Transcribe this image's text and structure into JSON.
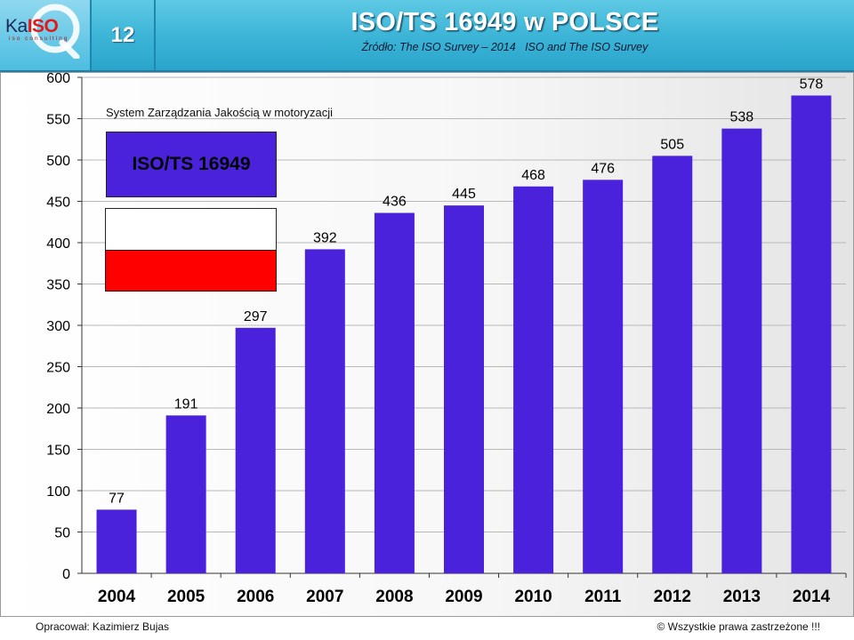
{
  "header": {
    "logo_text_main": "Ka",
    "logo_text_iso": "ISO",
    "logo_sub": "iso consulting",
    "slide_number": "12",
    "title": "ISO/TS 16949 w POLSCE",
    "subtitle": "Źródło: The ISO Survey – 2014   ISO and The ISO Survey"
  },
  "legend": {
    "system_label": "System Zarządzania Jakością w motoryzacji",
    "box_label": "ISO/TS 16949"
  },
  "footer": {
    "author": "Opracował: Kazimierz Bujas",
    "rights": "© Wszystkie prawa zastrzeżone !!!"
  },
  "colors": {
    "bar": "#4a22dc",
    "header": "#3ab3d6",
    "flag_white": "#ffffff",
    "flag_red": "#ff0000"
  },
  "chart_data": {
    "type": "bar",
    "categories": [
      "2004",
      "2005",
      "2006",
      "2007",
      "2008",
      "2009",
      "2010",
      "2011",
      "2012",
      "2013",
      "2014"
    ],
    "values": [
      77,
      191,
      297,
      392,
      436,
      445,
      468,
      476,
      505,
      538,
      578
    ],
    "title": "ISO/TS 16949 w POLSCE",
    "xlabel": "",
    "ylabel": "",
    "ylim": [
      0,
      600
    ],
    "yticks": [
      0,
      50,
      100,
      150,
      200,
      250,
      300,
      350,
      400,
      450,
      500,
      550,
      600
    ],
    "grid": true,
    "data_labels": true
  }
}
